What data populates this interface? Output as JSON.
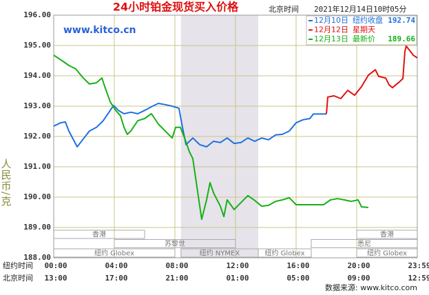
{
  "chart_data": {
    "type": "line",
    "title": "24小时铂金现货买入价格",
    "timezone_label": "北京时间",
    "timestamp": "2021年12月14日10时05分",
    "watermark": "www.kitco.cn",
    "ylabel": "人民币/克",
    "source": "数据来源: www.kitco.com",
    "x_row_labels": [
      "纽约时间",
      "北京时间"
    ],
    "xlim": [
      0,
      24
    ],
    "xticks": [
      {
        "value": 0,
        "label": "00:00"
      },
      {
        "value": 4,
        "label": "04:00"
      },
      {
        "value": 8,
        "label": "08:00"
      },
      {
        "value": 12,
        "label": "12:00"
      },
      {
        "value": 16,
        "label": "16:00"
      },
      {
        "value": 20,
        "label": "20:00"
      },
      {
        "value": 24,
        "label": "23:59"
      }
    ],
    "x2tick_labels": [
      "13:00",
      "17:00",
      "21:00",
      "01:00",
      "05:00",
      "09:00",
      "12:59"
    ],
    "ylim": [
      188,
      196
    ],
    "yticks": [
      {
        "value": 188,
        "label": "188.00"
      },
      {
        "value": 189,
        "label": "189.00"
      },
      {
        "value": 190,
        "label": "190.00"
      },
      {
        "value": 191,
        "label": "191.00"
      },
      {
        "value": 192,
        "label": "192.00"
      },
      {
        "value": 193,
        "label": "193.00"
      },
      {
        "value": 194,
        "label": "194.00"
      },
      {
        "value": 195,
        "label": "195.00"
      },
      {
        "value": 196,
        "label": "196.00"
      }
    ],
    "grid": true,
    "shaded": [
      8.4,
      13.5
    ],
    "sessions": [
      {
        "label": "香港",
        "start": 0,
        "end": 6,
        "row": 0
      },
      {
        "label": "香港",
        "start": 20,
        "end": 24,
        "row": 0
      },
      {
        "label": "苏黎世",
        "start": 4,
        "end": 12,
        "row": 1
      },
      {
        "label": "悉尼",
        "start": 17,
        "end": 24,
        "row": 1
      },
      {
        "label": "纽约 Globex",
        "start": 0,
        "end": 8,
        "row": 2
      },
      {
        "label": "纽约 NYMEX",
        "start": 8.4,
        "end": 13.5,
        "row": 2
      },
      {
        "label": "纽约 Globex",
        "start": 13.5,
        "end": 17,
        "row": 2
      },
      {
        "label": "纽约 Globex",
        "start": 20,
        "end": 24,
        "row": 2
      }
    ],
    "series": [
      {
        "name": "12月10日",
        "legend_text": "纽约收盘",
        "legend_value": "192.74",
        "color": "#1e6fe0",
        "x": [
          0,
          0.45,
          0.77,
          1,
          1.55,
          1.91,
          2.36,
          2.82,
          3.27,
          3.95,
          4.27,
          4.64,
          5.09,
          5.55,
          6,
          6.45,
          6.91,
          7.36,
          7.82,
          8.27,
          8.5,
          8.73,
          9.18,
          9.64,
          10.09,
          10.55,
          11,
          11.45,
          11.91,
          12.36,
          12.82,
          13.27,
          13.73,
          14.18,
          14.64,
          15.09,
          15.55,
          16,
          16.45,
          16.91,
          17.14,
          18
        ],
        "values": [
          192.34,
          192.45,
          192.48,
          192.18,
          191.66,
          191.89,
          192.18,
          192.3,
          192.52,
          193.02,
          192.86,
          192.75,
          192.8,
          192.75,
          192.86,
          192.98,
          193.09,
          193.05,
          193,
          192.93,
          192.3,
          191.73,
          191.95,
          191.73,
          191.66,
          191.84,
          191.8,
          191.95,
          191.77,
          191.8,
          191.95,
          191.84,
          191.95,
          191.89,
          192.05,
          192.07,
          192.18,
          192.45,
          192.55,
          192.59,
          192.74,
          192.74
        ]
      },
      {
        "name": "12月12日",
        "legend_text": "星期天",
        "color": "#e01010",
        "x": [
          18,
          18.09,
          18.5,
          18.95,
          19.41,
          19.86,
          20.32,
          20.77,
          21.23,
          21.45,
          21.91,
          22.14,
          22.36,
          22.82,
          23.05,
          23.18,
          23.27,
          23.55,
          23.73,
          24
        ],
        "values": [
          192.74,
          193.3,
          193.34,
          193.25,
          193.52,
          193.36,
          193.64,
          194.02,
          194.2,
          193.98,
          193.93,
          193.7,
          193.61,
          193.8,
          193.91,
          194.8,
          194.98,
          194.8,
          194.68,
          194.59
        ]
      },
      {
        "name": "12月13日",
        "legend_text": "最新价",
        "legend_value": "189.66",
        "color": "#16b016",
        "x": [
          0,
          0.55,
          1,
          1.45,
          1.91,
          2.36,
          2.82,
          3.18,
          3.36,
          3.73,
          4.09,
          4.41,
          4.64,
          4.86,
          5.09,
          5.55,
          6,
          6.45,
          6.91,
          7.36,
          7.82,
          8.05,
          8.36,
          8.64,
          8.95,
          9.18,
          9.64,
          9.77,
          10.09,
          10.32,
          10.55,
          11,
          11.23,
          11.45,
          11.91,
          12.36,
          12.82,
          13.27,
          13.73,
          14.18,
          14.64,
          15.09,
          15.55,
          16,
          16.45,
          16.91,
          17.36,
          17.82,
          18.27,
          18.73,
          19.18,
          19.64,
          20.09,
          20.32,
          20.77
        ],
        "values": [
          194.68,
          194.5,
          194.34,
          194.23,
          193.95,
          193.73,
          193.77,
          193.93,
          193.66,
          193.14,
          192.86,
          192.68,
          192.3,
          192.07,
          192.18,
          192.52,
          192.59,
          192.75,
          192.41,
          192.18,
          191.95,
          192.3,
          192.3,
          191.95,
          191.5,
          191.27,
          189.7,
          189.27,
          189.91,
          190.48,
          190.14,
          189.7,
          189.36,
          189.91,
          189.59,
          189.82,
          190.05,
          189.89,
          189.7,
          189.73,
          189.86,
          189.91,
          189.98,
          189.75,
          189.75,
          189.75,
          189.75,
          189.75,
          189.91,
          189.95,
          189.91,
          189.86,
          189.91,
          189.68,
          189.66
        ]
      }
    ]
  }
}
